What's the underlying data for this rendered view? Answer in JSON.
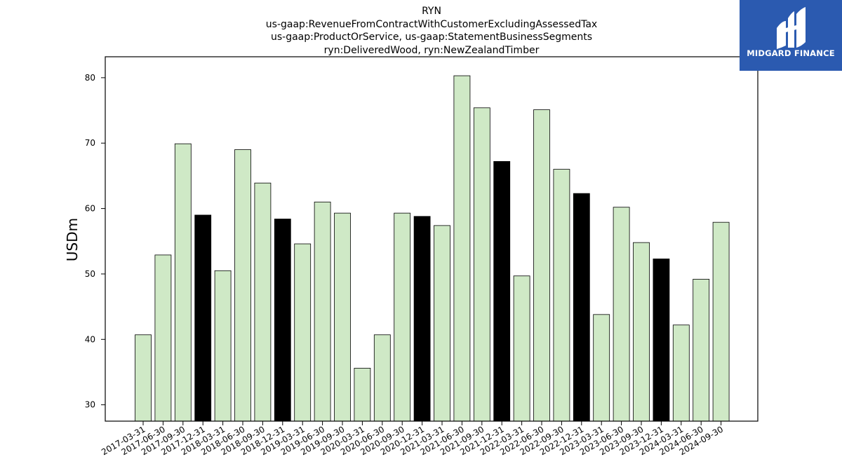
{
  "chart_data": {
    "type": "bar",
    "title_lines": [
      "RYN",
      "us-gaap:RevenueFromContractWithCustomerExcludingAssessedTax",
      "us-gaap:ProductOrService, us-gaap:StatementBusinessSegments",
      "ryn:DeliveredWood, ryn:NewZealandTimber"
    ],
    "xlabel": "",
    "ylabel": "USDm",
    "ylim": [
      27.5,
      83.2
    ],
    "yticks": [
      30,
      40,
      50,
      60,
      70,
      80
    ],
    "grid": false,
    "categories": [
      "2017-03-31",
      "2017-06-30",
      "2017-09-30",
      "2017-12-31",
      "2018-03-31",
      "2018-06-30",
      "2018-09-30",
      "2018-12-31",
      "2019-03-31",
      "2019-06-30",
      "2019-09-30",
      "2020-03-31",
      "2020-06-30",
      "2020-09-30",
      "2020-12-31",
      "2021-03-31",
      "2021-06-30",
      "2021-09-30",
      "2021-12-31",
      "2022-03-31",
      "2022-06-30",
      "2022-09-30",
      "2022-12-31",
      "2023-03-31",
      "2023-06-30",
      "2023-09-30",
      "2023-12-31",
      "2024-03-31",
      "2024-06-30",
      "2024-09-30"
    ],
    "values": [
      40.7,
      52.9,
      69.9,
      59.0,
      50.5,
      69.0,
      63.9,
      58.4,
      54.6,
      61.0,
      59.3,
      35.6,
      40.7,
      59.3,
      58.8,
      57.4,
      80.3,
      75.4,
      67.2,
      49.7,
      75.1,
      66.0,
      62.3,
      43.8,
      60.2,
      54.8,
      52.3,
      42.2,
      49.2,
      57.9
    ],
    "highlight": [
      false,
      false,
      false,
      true,
      false,
      false,
      false,
      true,
      false,
      false,
      false,
      false,
      false,
      false,
      true,
      false,
      false,
      false,
      true,
      false,
      false,
      false,
      true,
      false,
      false,
      false,
      true,
      false,
      false,
      false
    ],
    "colors": {
      "bar": "#cfe9c6",
      "highlight": "#000000",
      "edge": "#000000"
    }
  },
  "logo": {
    "text": "MIDGARD FINANCE",
    "background": "#2b5ab0",
    "icon": "midgard-logo-icon"
  }
}
